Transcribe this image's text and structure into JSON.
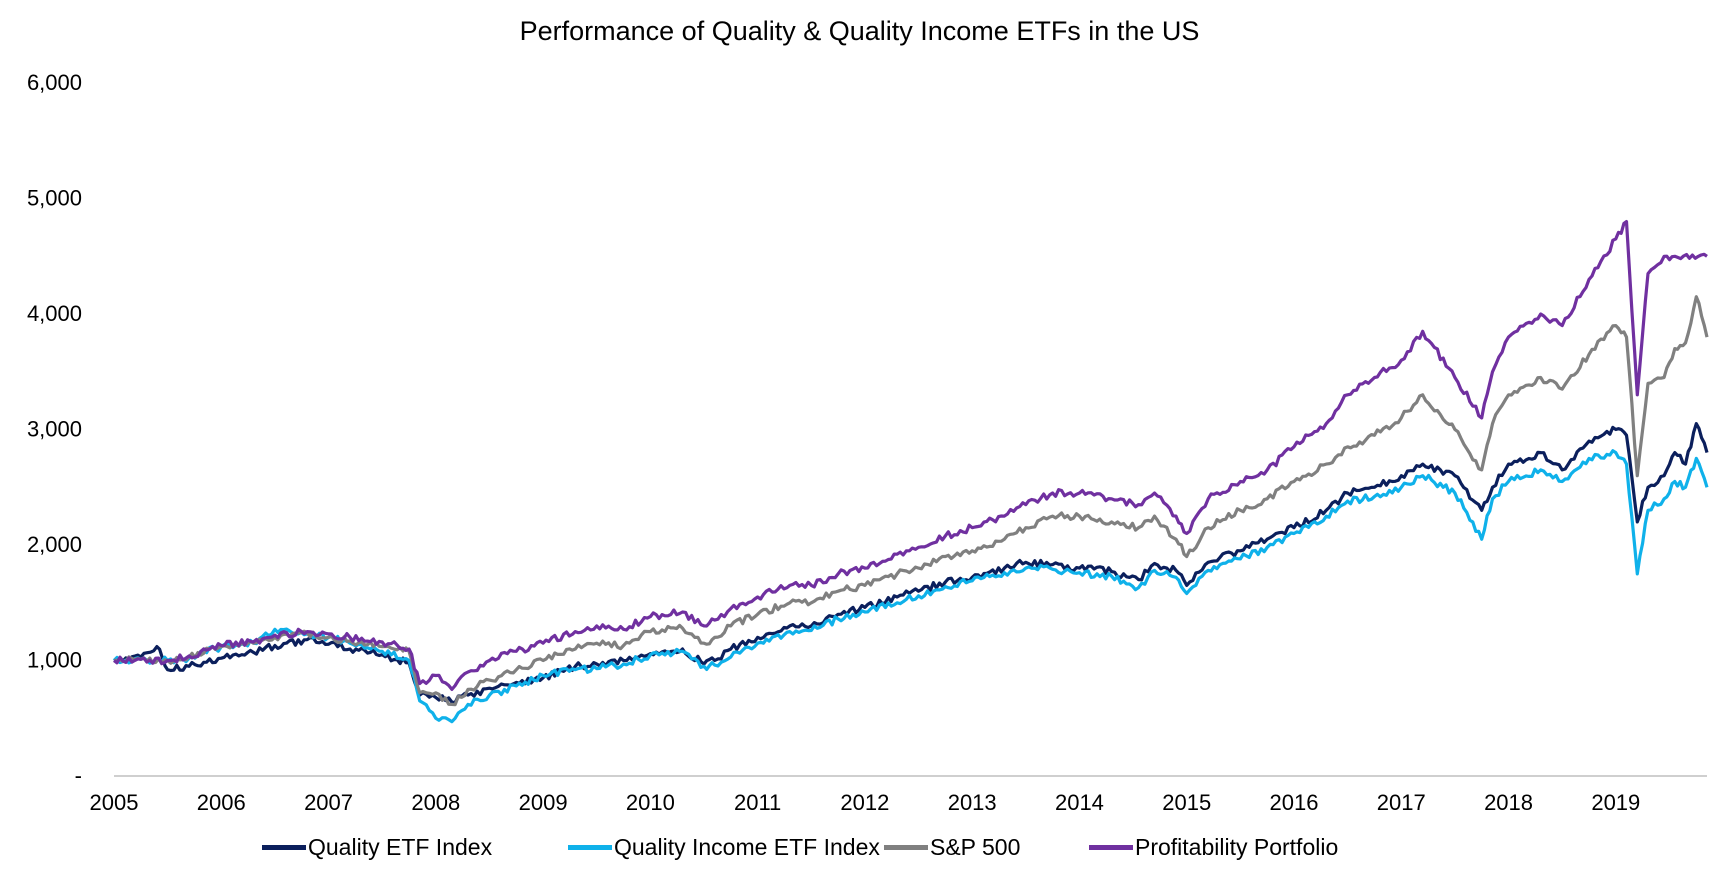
{
  "chart_data": {
    "type": "line",
    "title": "Performance of Quality & Quality Income ETFs in the US",
    "xlabel": "",
    "ylabel": "",
    "ylim": [
      0,
      6000
    ],
    "y_ticks": [
      {
        "value": 0,
        "label": "-"
      },
      {
        "value": 1000,
        "label": "1,000"
      },
      {
        "value": 2000,
        "label": "2,000"
      },
      {
        "value": 3000,
        "label": "3,000"
      },
      {
        "value": 4000,
        "label": "4,000"
      },
      {
        "value": 5000,
        "label": "5,000"
      },
      {
        "value": 6000,
        "label": "6,000"
      }
    ],
    "x_ticks": [
      "2005",
      "2006",
      "2007",
      "2008",
      "2009",
      "2010",
      "2011",
      "2012",
      "2013",
      "2014",
      "2015",
      "2016",
      "2017",
      "2018",
      "2019"
    ],
    "xlim": [
      2005.0,
      2019.85
    ],
    "grid": false,
    "legend_position": "bottom",
    "series": [
      {
        "name": "Quality ETF Index",
        "color": "#0b1f5c",
        "x": [
          2005.0,
          2005.25,
          2005.4,
          2005.5,
          2005.7,
          2006.0,
          2006.3,
          2006.5,
          2006.8,
          2007.0,
          2007.2,
          2007.5,
          2007.75,
          2007.85,
          2008.0,
          2008.15,
          2008.3,
          2008.5,
          2008.75,
          2009.0,
          2009.3,
          2009.5,
          2009.75,
          2010.0,
          2010.3,
          2010.5,
          2010.6,
          2010.75,
          2011.0,
          2011.3,
          2011.5,
          2011.75,
          2012.0,
          2012.3,
          2012.5,
          2012.75,
          2013.0,
          2013.3,
          2013.5,
          2013.75,
          2014.0,
          2014.3,
          2014.55,
          2014.7,
          2014.9,
          2015.0,
          2015.2,
          2015.5,
          2015.75,
          2016.0,
          2016.3,
          2016.5,
          2016.75,
          2017.0,
          2017.2,
          2017.5,
          2017.75,
          2017.85,
          2018.0,
          2018.3,
          2018.5,
          2018.75,
          2019.0,
          2019.1,
          2019.2,
          2019.3,
          2019.45,
          2019.55,
          2019.65,
          2019.75,
          2019.85
        ],
        "values": [
          1000,
          1030,
          1120,
          920,
          950,
          1020,
          1070,
          1130,
          1180,
          1140,
          1100,
          1050,
          980,
          700,
          680,
          640,
          700,
          760,
          810,
          850,
          950,
          970,
          1000,
          1060,
          1100,
          970,
          1000,
          1100,
          1200,
          1300,
          1300,
          1400,
          1460,
          1550,
          1600,
          1680,
          1720,
          1800,
          1850,
          1830,
          1800,
          1770,
          1700,
          1840,
          1780,
          1650,
          1850,
          1950,
          2050,
          2150,
          2300,
          2450,
          2500,
          2600,
          2700,
          2600,
          2300,
          2500,
          2700,
          2800,
          2650,
          2900,
          3000,
          2950,
          2200,
          2500,
          2600,
          2800,
          2700,
          3050,
          2800
        ]
      },
      {
        "name": "Quality Income ETF Index",
        "color": "#0fb1ea",
        "x": [
          2005.0,
          2005.25,
          2005.5,
          2005.7,
          2006.0,
          2006.3,
          2006.5,
          2006.8,
          2007.0,
          2007.2,
          2007.5,
          2007.75,
          2007.85,
          2008.0,
          2008.15,
          2008.3,
          2008.5,
          2008.75,
          2009.0,
          2009.3,
          2009.5,
          2009.75,
          2010.0,
          2010.3,
          2010.5,
          2010.6,
          2010.75,
          2011.0,
          2011.3,
          2011.5,
          2011.75,
          2012.0,
          2012.3,
          2012.5,
          2012.75,
          2013.0,
          2013.3,
          2013.5,
          2013.75,
          2014.0,
          2014.3,
          2014.55,
          2014.7,
          2014.9,
          2015.0,
          2015.2,
          2015.5,
          2015.75,
          2016.0,
          2016.3,
          2016.5,
          2016.75,
          2017.0,
          2017.2,
          2017.5,
          2017.75,
          2017.85,
          2018.0,
          2018.3,
          2018.5,
          2018.75,
          2019.0,
          2019.1,
          2019.2,
          2019.3,
          2019.45,
          2019.55,
          2019.65,
          2019.75,
          2019.85
        ],
        "values": [
          1000,
          1010,
          1000,
          1020,
          1120,
          1150,
          1270,
          1230,
          1200,
          1150,
          1080,
          1000,
          650,
          500,
          470,
          620,
          700,
          780,
          870,
          920,
          930,
          970,
          1050,
          1080,
          950,
          960,
          1030,
          1150,
          1250,
          1260,
          1360,
          1420,
          1500,
          1560,
          1640,
          1690,
          1760,
          1800,
          1790,
          1760,
          1730,
          1630,
          1780,
          1720,
          1580,
          1780,
          1880,
          1980,
          2100,
          2250,
          2380,
          2420,
          2500,
          2600,
          2450,
          2050,
          2400,
          2550,
          2650,
          2550,
          2750,
          2800,
          2700,
          1750,
          2300,
          2400,
          2550,
          2500,
          2750,
          2500
        ]
      },
      {
        "name": "S&P 500",
        "color": "#808080",
        "x": [
          2005.0,
          2005.25,
          2005.5,
          2005.7,
          2006.0,
          2006.3,
          2006.5,
          2006.8,
          2007.0,
          2007.2,
          2007.5,
          2007.75,
          2007.85,
          2008.0,
          2008.15,
          2008.3,
          2008.5,
          2008.75,
          2009.0,
          2009.3,
          2009.5,
          2009.75,
          2010.0,
          2010.3,
          2010.5,
          2010.6,
          2010.75,
          2011.0,
          2011.3,
          2011.5,
          2011.75,
          2012.0,
          2012.3,
          2012.5,
          2012.75,
          2013.0,
          2013.3,
          2013.5,
          2013.75,
          2014.0,
          2014.3,
          2014.55,
          2014.7,
          2014.9,
          2015.0,
          2015.2,
          2015.5,
          2015.75,
          2016.0,
          2016.3,
          2016.5,
          2016.75,
          2017.0,
          2017.2,
          2017.5,
          2017.75,
          2017.85,
          2018.0,
          2018.3,
          2018.5,
          2018.75,
          2019.0,
          2019.1,
          2019.2,
          2019.3,
          2019.45,
          2019.55,
          2019.65,
          2019.75,
          2019.85
        ],
        "values": [
          1000,
          1010,
          1000,
          1030,
          1120,
          1150,
          1200,
          1240,
          1200,
          1170,
          1120,
          1080,
          720,
          720,
          620,
          750,
          830,
          920,
          1000,
          1100,
          1150,
          1130,
          1250,
          1280,
          1150,
          1200,
          1300,
          1400,
          1500,
          1500,
          1600,
          1650,
          1750,
          1800,
          1900,
          1950,
          2050,
          2150,
          2250,
          2250,
          2200,
          2150,
          2250,
          2050,
          1900,
          2150,
          2300,
          2400,
          2550,
          2700,
          2850,
          2950,
          3100,
          3300,
          3000,
          2650,
          3050,
          3300,
          3450,
          3350,
          3650,
          3900,
          3800,
          2600,
          3400,
          3450,
          3700,
          3750,
          4150,
          3800
        ]
      },
      {
        "name": "Profitability Portfolio",
        "color": "#7030a0",
        "x": [
          2005.0,
          2005.25,
          2005.5,
          2005.7,
          2006.0,
          2006.3,
          2006.5,
          2006.8,
          2007.0,
          2007.2,
          2007.5,
          2007.75,
          2007.85,
          2008.0,
          2008.15,
          2008.3,
          2008.5,
          2008.75,
          2009.0,
          2009.3,
          2009.5,
          2009.75,
          2010.0,
          2010.3,
          2010.5,
          2010.6,
          2010.75,
          2011.0,
          2011.3,
          2011.5,
          2011.75,
          2012.0,
          2012.3,
          2012.5,
          2012.75,
          2013.0,
          2013.3,
          2013.5,
          2013.75,
          2014.0,
          2014.3,
          2014.55,
          2014.7,
          2014.9,
          2015.0,
          2015.2,
          2015.5,
          2015.75,
          2016.0,
          2016.3,
          2016.5,
          2016.75,
          2017.0,
          2017.2,
          2017.5,
          2017.75,
          2017.85,
          2018.0,
          2018.3,
          2018.5,
          2018.75,
          2019.0,
          2019.1,
          2019.2,
          2019.3,
          2019.45,
          2019.55,
          2019.85
        ],
        "values": [
          1000,
          1010,
          1000,
          1040,
          1130,
          1160,
          1220,
          1250,
          1230,
          1200,
          1160,
          1100,
          800,
          870,
          750,
          900,
          1000,
          1080,
          1150,
          1250,
          1300,
          1270,
          1380,
          1420,
          1300,
          1350,
          1450,
          1550,
          1650,
          1650,
          1750,
          1800,
          1920,
          1980,
          2080,
          2150,
          2250,
          2350,
          2450,
          2450,
          2400,
          2350,
          2450,
          2250,
          2100,
          2400,
          2550,
          2650,
          2850,
          3050,
          3300,
          3450,
          3600,
          3850,
          3450,
          3100,
          3500,
          3800,
          4000,
          3900,
          4300,
          4650,
          4800,
          3300,
          4350,
          4500,
          4500,
          4500
        ]
      }
    ]
  }
}
